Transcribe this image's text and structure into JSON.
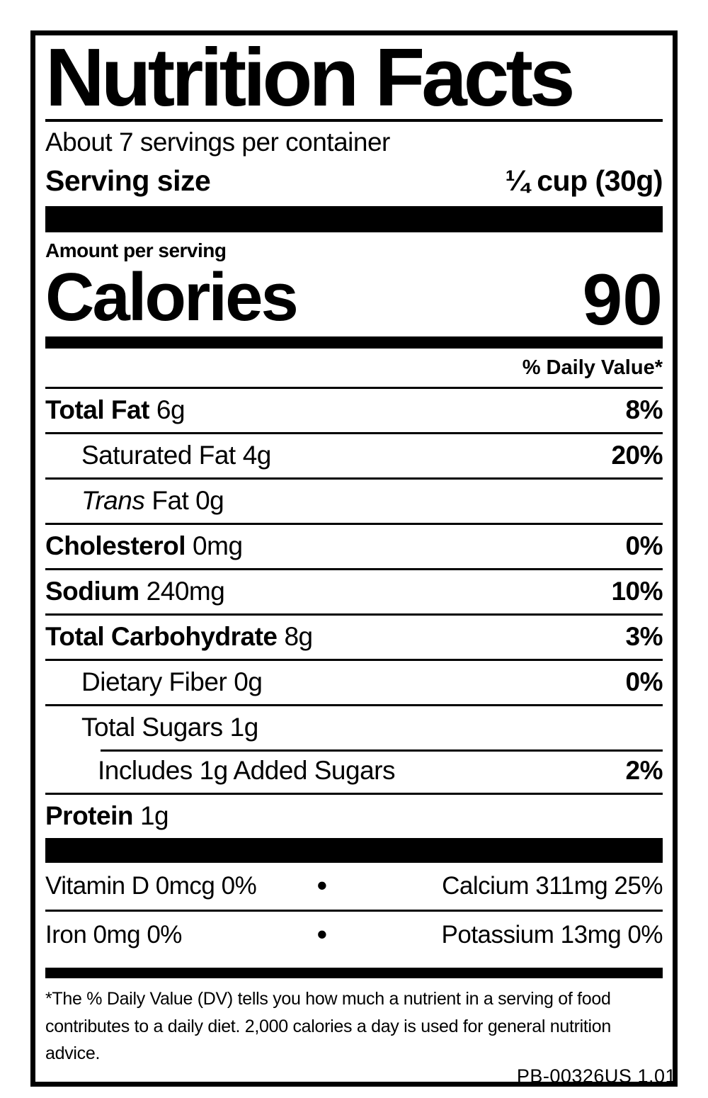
{
  "colors": {
    "ink": "#000000",
    "paper": "#ffffff"
  },
  "label": {
    "title": "Nutrition Facts",
    "servings_per_container": "About 7 servings per container",
    "serving_size": {
      "label": "Serving size",
      "value": "¼ cup (30g)"
    },
    "amount_per_serving": "Amount per serving",
    "calories": {
      "label": "Calories",
      "value": "90"
    },
    "daily_value_header": "% Daily Value*",
    "nutrients": [
      {
        "name": "Total Fat",
        "amount": "6g",
        "daily_value": "8%"
      },
      {
        "name": "Saturated Fat",
        "amount": "4g",
        "daily_value": "20%"
      },
      {
        "name": "Trans",
        "amount": "Fat 0g",
        "daily_value": ""
      },
      {
        "name": "Cholesterol",
        "amount": "0mg",
        "daily_value": "0%"
      },
      {
        "name": "Sodium",
        "amount": "240mg",
        "daily_value": "10%"
      },
      {
        "name": "Total Carbohydrate",
        "amount": "8g",
        "daily_value": "3%"
      },
      {
        "name": "Dietary Fiber",
        "amount": "0g",
        "daily_value": "0%"
      },
      {
        "name": "Total Sugars",
        "amount": "1g",
        "daily_value": ""
      },
      {
        "name": "Includes 1g Added Sugars",
        "amount": "",
        "daily_value": "2%"
      },
      {
        "name": "Protein",
        "amount": "1g",
        "daily_value": ""
      }
    ],
    "micronutrients": {
      "bullet": "•",
      "rows": [
        {
          "left": "Vitamin D 0mcg 0%",
          "right": "Calcium 311mg 25%"
        },
        {
          "left": "Iron 0mg 0%",
          "right": "Potassium 13mg 0%"
        }
      ]
    },
    "footnote": "*The % Daily Value (DV) tells you how much a nutrient in a serving of food contributes to a daily diet. 2,000 calories a day is used for general nutrition advice.",
    "product_code": "PB-00326US 1.01"
  }
}
